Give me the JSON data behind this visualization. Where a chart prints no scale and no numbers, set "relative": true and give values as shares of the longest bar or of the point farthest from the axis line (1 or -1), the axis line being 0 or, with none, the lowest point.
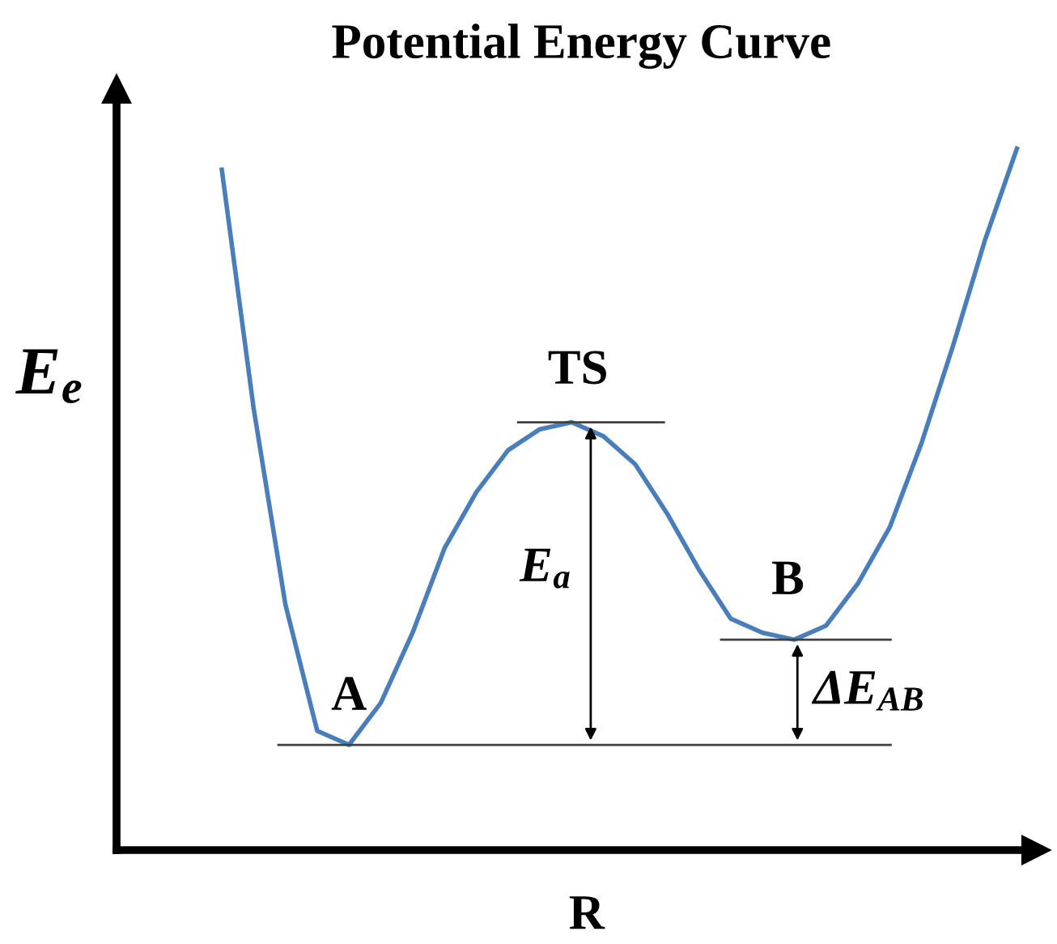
{
  "chart_data": {
    "type": "line",
    "title": "Potential Energy Curve",
    "xlabel": "R",
    "ylabel": "E$_{e}$",
    "relative": true,
    "color": "#4a7ebb",
    "categories": [
      null,
      null,
      null,
      null,
      null,
      null,
      null,
      null,
      null,
      null,
      null,
      null,
      null,
      null,
      null,
      null,
      null,
      null,
      null,
      null,
      null,
      null,
      null,
      null,
      null,
      null
    ],
    "values": [
      0.97,
      0.63,
      0.35,
      0.17,
      0.15,
      0.21,
      0.31,
      0.43,
      0.51,
      0.57,
      0.6,
      0.61,
      0.59,
      0.55,
      0.48,
      0.4,
      0.33,
      0.31,
      0.3,
      0.32,
      0.38,
      0.46,
      0.58,
      0.72,
      0.87,
      1.0
    ],
    "ref_lines": [
      {
        "axis": "y",
        "value": 0.15,
        "label": null,
        "color": "#404040"
      },
      {
        "axis": "y",
        "value": 0.61,
        "label": null,
        "color": "#404040"
      },
      {
        "axis": "y",
        "value": 0.3,
        "label": null,
        "color": "#404040"
      }
    ],
    "annotations": [
      "A",
      "TS",
      "B",
      "E$_{a}$",
      "ΔE$_{AB}$"
    ],
    "grid": false,
    "marker": "none",
    "line_style": "solid"
  }
}
